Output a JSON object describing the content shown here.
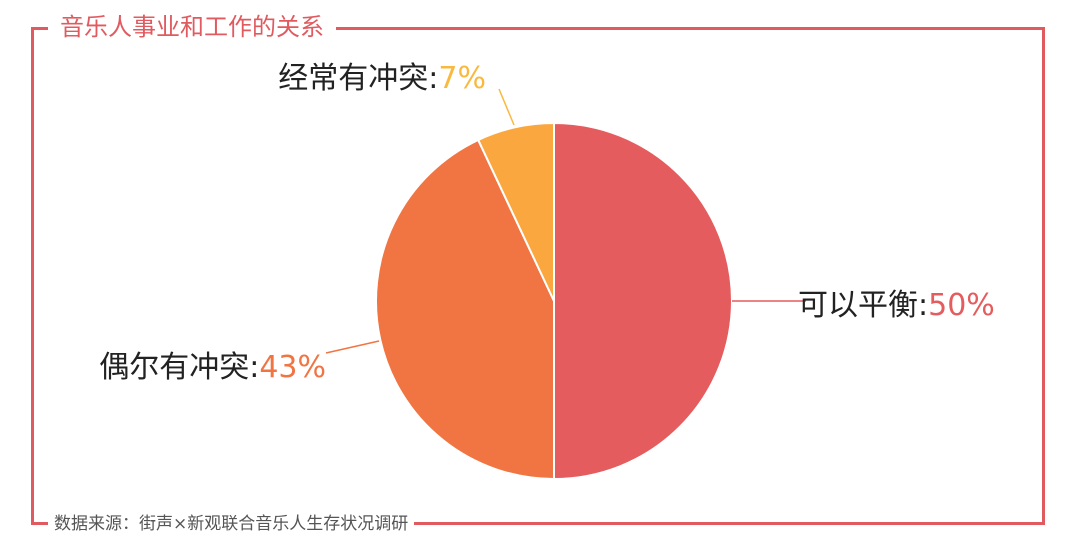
{
  "chart_data": {
    "type": "pie",
    "title": "音乐人事业和工作的关系",
    "source": "数据来源：街声×新观联合音乐人生存状况调研",
    "slices": [
      {
        "label": "可以平衡",
        "value": 50,
        "value_text": "50%",
        "color": "#e55c5e"
      },
      {
        "label": "偶尔有冲突",
        "value": 43,
        "value_text": "43%",
        "color": "#f07542"
      },
      {
        "label": "经常有冲突",
        "value": 7,
        "value_text": "7%",
        "color": "#fba740"
      }
    ],
    "label_colors": [
      "#e55c5e",
      "#f07542",
      "#f9b93f"
    ],
    "label_text_color": "#222222",
    "frame_color": "#e05a5f"
  }
}
